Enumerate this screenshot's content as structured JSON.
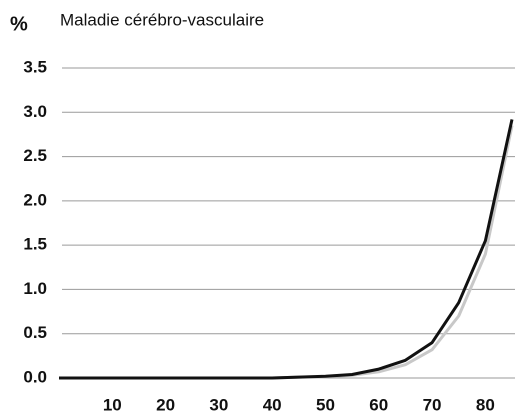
{
  "chart_data": {
    "type": "line",
    "title": "Maladie cérébro-vasculaire",
    "y_label": "%",
    "x": [
      0,
      5,
      10,
      15,
      20,
      25,
      30,
      35,
      40,
      45,
      50,
      55,
      60,
      65,
      70,
      75,
      80,
      85
    ],
    "series": [
      {
        "color": "#c8c8c8",
        "values": [
          0,
          0,
          0,
          0,
          0,
          0,
          0,
          0,
          0,
          0.01,
          0.015,
          0.03,
          0.07,
          0.15,
          0.32,
          0.7,
          1.4,
          2.85
        ]
      },
      {
        "color": "#111111",
        "values": [
          0,
          0,
          0,
          0,
          0,
          0,
          0,
          0,
          0,
          0.01,
          0.02,
          0.04,
          0.1,
          0.2,
          0.4,
          0.85,
          1.55,
          2.92
        ]
      }
    ],
    "xlim": [
      0,
      85
    ],
    "ylim": [
      0,
      3.5
    ],
    "xticks": [
      10,
      20,
      30,
      40,
      50,
      60,
      70,
      80
    ],
    "yticks": [
      {
        "value": 0,
        "label": "0.0"
      },
      {
        "value": 0.5,
        "label": "0.5"
      },
      {
        "value": 1,
        "label": "1.0"
      },
      {
        "value": 1.5,
        "label": "1.5"
      },
      {
        "value": 2,
        "label": "2.0"
      },
      {
        "value": 2.5,
        "label": "2.5"
      },
      {
        "value": 3,
        "label": "3.0"
      },
      {
        "value": 3.5,
        "label": "3.5"
      }
    ],
    "grid": true
  }
}
